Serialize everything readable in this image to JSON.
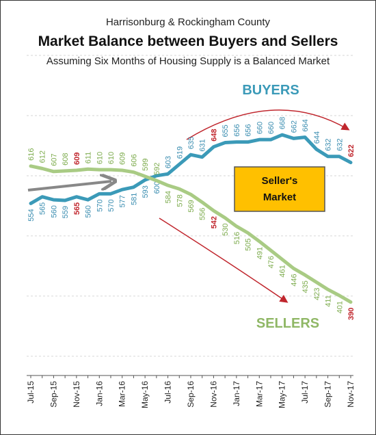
{
  "chart_data": {
    "type": "line",
    "title": "Market Balance between Buyers and Sellers",
    "supertitle": "Harrisonburg & Rockingham County",
    "subtitle": "Assuming Six Months of Housing Supply is a Balanced Market",
    "categories": [
      "Jul-15",
      null,
      "Sep-15",
      null,
      "Nov-15",
      null,
      "Jan-16",
      null,
      "Mar-16",
      null,
      "May-16",
      null,
      "Jul-16",
      null,
      "Sep-16",
      null,
      "Nov-16",
      null,
      "Jan-17",
      null,
      "Mar-17",
      null,
      "May-17",
      null,
      "Jul-17",
      null,
      "Sep-17",
      null,
      "Nov-17"
    ],
    "series": [
      {
        "name": "BUYERS",
        "color": "#3b9ab8",
        "label_color": "#3a8db0",
        "highlight_color": "#c0262d",
        "highlights": [
          4,
          16,
          28
        ],
        "values": [
          554,
          565,
          560,
          559,
          565,
          560,
          570,
          570,
          577,
          581,
          593,
          600,
          603,
          619,
          635,
          631,
          648,
          655,
          656,
          656,
          660,
          660,
          668,
          662,
          664,
          644,
          632,
          632,
          622
        ]
      },
      {
        "name": "SELLERS",
        "color": "#a9cb84",
        "label_color": "#7cab4c",
        "highlight_color": "#c0262d",
        "highlights": [
          4,
          16,
          28
        ],
        "values": [
          616,
          612,
          607,
          608,
          609,
          611,
          610,
          610,
          609,
          606,
          599,
          592,
          584,
          578,
          569,
          556,
          542,
          530,
          516,
          505,
          491,
          476,
          461,
          446,
          435,
          423,
          411,
          401,
          390
        ]
      }
    ],
    "annotation": [
      "Seller's",
      "Market"
    ],
    "ylim": [
      268,
      800
    ],
    "yticks": [
      300,
      400,
      500,
      600,
      700,
      800
    ],
    "grid": true
  }
}
